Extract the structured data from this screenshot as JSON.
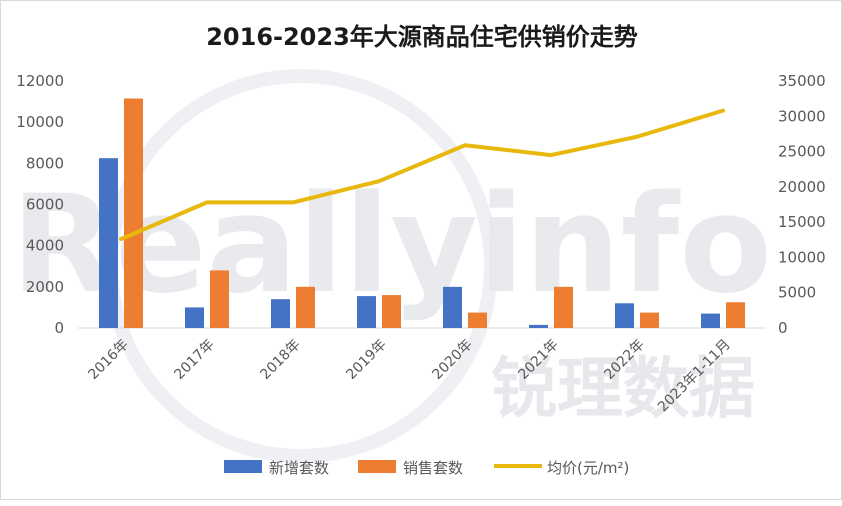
{
  "chart_data": {
    "type": "bar",
    "title": "2016-2023年大源商品住宅供销价走势",
    "categories": [
      "2016年",
      "2017年",
      "2018年",
      "2019年",
      "2020年",
      "2021年",
      "2022年",
      "2023年1-11月"
    ],
    "series": [
      {
        "name": "新增套数",
        "kind": "bar",
        "axis": "left",
        "color": "#4472C4",
        "values": [
          8250,
          1000,
          1400,
          1550,
          2000,
          150,
          1200,
          700
        ]
      },
      {
        "name": "销售套数",
        "kind": "bar",
        "axis": "left",
        "color": "#ED7D31",
        "values": [
          11150,
          2800,
          2000,
          1600,
          750,
          2000,
          750,
          1250
        ]
      },
      {
        "name": "均价(元/m²)",
        "kind": "line",
        "axis": "right",
        "color": "#E8B80C",
        "values": [
          12600,
          17800,
          17800,
          20800,
          25900,
          24500,
          27100,
          30800
        ]
      }
    ],
    "y_left": {
      "lim": [
        0,
        12000
      ],
      "ticks": [
        "0",
        "2000",
        "4000",
        "6000",
        "8000",
        "10000",
        "12000"
      ]
    },
    "y_right": {
      "lim": [
        0,
        35000
      ],
      "ticks": [
        "0",
        "5000",
        "10000",
        "15000",
        "20000",
        "25000",
        "30000",
        "35000"
      ]
    },
    "grid": false,
    "legend": "bottom"
  },
  "watermark": {
    "latin": "Reallyinfo",
    "cjk": "锐理数据"
  }
}
